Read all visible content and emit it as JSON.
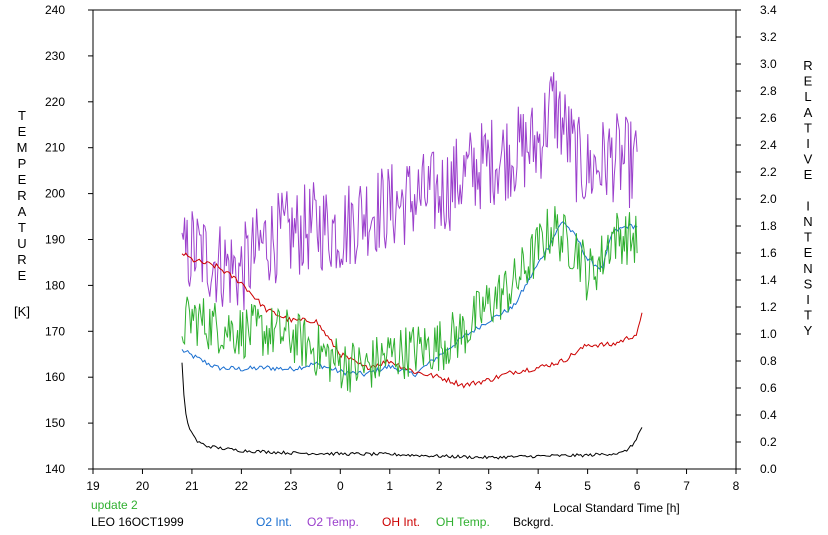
{
  "chart_data": {
    "type": "line",
    "left_axis_label": [
      "T",
      "E",
      "M",
      "P",
      "E",
      "R",
      "A",
      "T",
      "U",
      "R",
      "E",
      "",
      "[K]"
    ],
    "right_axis_label": [
      "R",
      "E",
      "L",
      "A",
      "T",
      "I",
      "V",
      "E",
      "",
      "I",
      "N",
      "T",
      "E",
      "N",
      "S",
      "I",
      "T",
      "Y"
    ],
    "xlabel": "Local Standard Time [h]",
    "xlim": [
      19,
      8
    ],
    "x_ticks": [
      "19",
      "20",
      "21",
      "22",
      "23",
      "0",
      "1",
      "2",
      "3",
      "4",
      "5",
      "6",
      "7",
      "8"
    ],
    "ylim_left": [
      140,
      240
    ],
    "y_ticks_left": [
      "140",
      "150",
      "160",
      "170",
      "180",
      "190",
      "200",
      "210",
      "220",
      "230",
      "240"
    ],
    "ylim_right": [
      0.0,
      3.4
    ],
    "y_ticks_right": [
      "0.0",
      "0.2",
      "0.4",
      "0.6",
      "0.8",
      "1.0",
      "1.2",
      "1.4",
      "1.6",
      "1.8",
      "2.0",
      "2.2",
      "2.4",
      "2.6",
      "2.8",
      "3.0",
      "3.2",
      "3.4"
    ],
    "grid": false,
    "notes": {
      "update": "update 2",
      "station": "LEO 16OCT1999"
    },
    "series": [
      {
        "name": "O2 Int.",
        "color": "#1a6fd0",
        "axis": "right",
        "style": "smooth",
        "x": [
          20.8,
          21.0,
          21.5,
          22.0,
          22.5,
          23.0,
          23.5,
          24.0,
          24.5,
          25.0,
          25.5,
          26.0,
          26.5,
          27.0,
          27.5,
          28.0,
          28.5,
          28.8,
          29.0,
          29.3,
          29.5,
          29.8,
          30.0
        ],
        "y": [
          0.88,
          0.84,
          0.75,
          0.74,
          0.75,
          0.74,
          0.78,
          0.72,
          0.7,
          0.76,
          0.7,
          0.84,
          0.98,
          1.1,
          1.2,
          1.52,
          1.84,
          1.7,
          1.55,
          1.48,
          1.75,
          1.8,
          1.8
        ]
      },
      {
        "name": "O2 Temp.",
        "color": "#9b40cc",
        "axis": "left",
        "style": "noisy",
        "amp": 10,
        "x": [
          20.8,
          21.0,
          21.5,
          22.0,
          22.5,
          23.0,
          23.5,
          24.0,
          24.5,
          25.0,
          25.5,
          26.0,
          26.5,
          27.0,
          27.5,
          28.0,
          28.3,
          28.5,
          28.8,
          29.0,
          29.5,
          30.0
        ],
        "y": [
          185,
          188,
          185,
          183,
          190,
          191,
          193,
          192,
          196,
          197,
          199,
          200,
          204,
          207,
          209,
          211,
          220,
          215,
          207,
          205,
          208,
          206
        ]
      },
      {
        "name": "OH Int.",
        "color": "#cc0000",
        "axis": "right",
        "style": "smooth",
        "x": [
          20.8,
          21.0,
          21.5,
          22.0,
          22.5,
          23.0,
          23.5,
          24.0,
          24.5,
          25.0,
          25.5,
          26.0,
          26.5,
          27.0,
          27.5,
          28.0,
          28.5,
          29.0,
          29.5,
          30.0,
          30.1
        ],
        "y": [
          1.6,
          1.55,
          1.5,
          1.38,
          1.18,
          1.1,
          1.1,
          0.85,
          0.75,
          0.8,
          0.72,
          0.68,
          0.62,
          0.66,
          0.72,
          0.75,
          0.8,
          0.92,
          0.92,
          1.0,
          1.14
        ]
      },
      {
        "name": "OH Temp.",
        "color": "#30b030",
        "axis": "left",
        "style": "noisy",
        "amp": 6,
        "x": [
          20.8,
          21.0,
          21.5,
          22.0,
          22.5,
          23.0,
          23.5,
          24.0,
          24.5,
          25.0,
          25.5,
          26.0,
          26.5,
          27.0,
          27.5,
          28.0,
          28.3,
          28.5,
          28.8,
          29.0,
          29.3,
          29.5,
          30.0
        ],
        "y": [
          171,
          173,
          171,
          170,
          170,
          169,
          166,
          163,
          162,
          165,
          166,
          167,
          170,
          176,
          180,
          188,
          193,
          190,
          188,
          182,
          186,
          191,
          190
        ]
      },
      {
        "name": "Bckgrd.",
        "color": "#000000",
        "axis": "left",
        "style": "smooth",
        "x": [
          20.8,
          20.85,
          20.9,
          21.0,
          21.1,
          21.3,
          21.6,
          22.0,
          23.0,
          24.0,
          25.0,
          26.0,
          27.0,
          28.0,
          29.0,
          29.7,
          29.9,
          30.1
        ],
        "y": [
          163,
          154,
          150,
          148,
          146,
          145,
          144.5,
          144,
          143.5,
          143.3,
          143.2,
          142.8,
          142.5,
          142.8,
          143,
          143.5,
          145,
          149
        ]
      }
    ]
  }
}
